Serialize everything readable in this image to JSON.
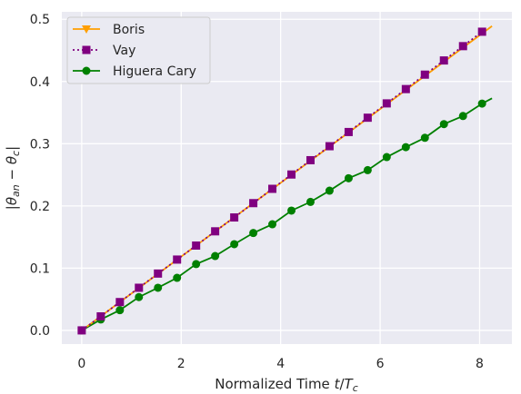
{
  "chart_data": {
    "type": "line",
    "xlabel": "Normalized Time t/T_c",
    "ylabel": "|θ_an − θ_c|",
    "xlim": [
      -0.4,
      8.65
    ],
    "ylim": [
      -0.022,
      0.512
    ],
    "x_ticks": [
      0,
      2,
      4,
      6,
      8
    ],
    "y_ticks": [
      0.0,
      0.1,
      0.2,
      0.3,
      0.4,
      0.5
    ],
    "x_tick_labels": [
      "0",
      "2",
      "4",
      "6",
      "8"
    ],
    "y_tick_labels": [
      "0.0",
      "0.1",
      "0.2",
      "0.3",
      "0.4",
      "0.5"
    ],
    "grid": true,
    "legend_position": "top-left",
    "x": [
      0.0,
      0.383,
      0.767,
      1.15,
      1.533,
      1.917,
      2.3,
      2.683,
      3.067,
      3.45,
      3.833,
      4.217,
      4.6,
      4.983,
      5.367,
      5.75,
      6.133,
      6.517,
      6.9,
      7.283,
      7.667,
      8.05
    ],
    "series": [
      {
        "name": "Boris",
        "color": "#ff9f00",
        "linestyle": "solid",
        "marker": "triangle-down",
        "x": [
          0.0,
          8.25
        ],
        "values": [
          0.0,
          0.489
        ]
      },
      {
        "name": "Vay",
        "color": "#800080",
        "linestyle": "dotted",
        "marker": "square",
        "values": [
          0.0,
          0.0225,
          0.0455,
          0.0685,
          0.0913,
          0.1138,
          0.1363,
          0.1592,
          0.1815,
          0.2045,
          0.2275,
          0.2505,
          0.2735,
          0.296,
          0.3188,
          0.3418,
          0.3648,
          0.3878,
          0.411,
          0.4338,
          0.4568,
          0.48
        ]
      },
      {
        "name": "Higuera Cary",
        "color": "#008000",
        "linestyle": "solid",
        "marker": "circle",
        "values": [
          0.0,
          0.0175,
          0.0325,
          0.0535,
          0.0685,
          0.0845,
          0.1065,
          0.1195,
          0.1385,
          0.1565,
          0.1705,
          0.1925,
          0.2065,
          0.2245,
          0.2445,
          0.2575,
          0.2785,
          0.2945,
          0.3095,
          0.3315,
          0.3445,
          0.3645
        ],
        "end_x": 8.25,
        "end_value": 0.373
      }
    ]
  }
}
